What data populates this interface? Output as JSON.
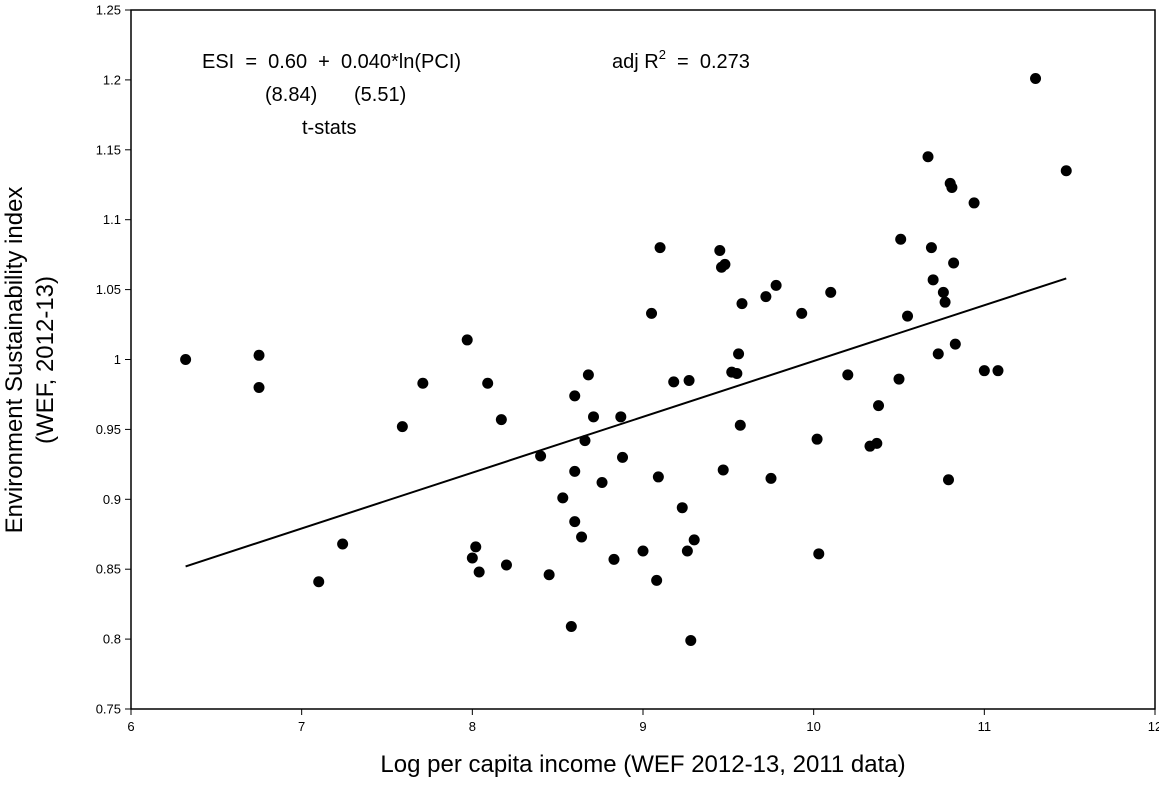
{
  "chart_data": {
    "type": "scatter",
    "xlabel": "Log per capita income  (WEF 2012-13, 2011 data)",
    "ylabel_line1": "Environment Sustainability index",
    "ylabel_line2": "(WEF,  2012-13)",
    "xlim": [
      6,
      12
    ],
    "ylim": [
      0.75,
      1.25
    ],
    "x_ticks": [
      6,
      7,
      8,
      9,
      10,
      11,
      12
    ],
    "y_ticks": [
      0.75,
      0.8,
      0.85,
      0.9,
      0.95,
      1,
      1.05,
      1.1,
      1.15,
      1.2,
      1.25
    ],
    "x_tick_labels": [
      "6",
      "7",
      "8",
      "9",
      "10",
      "11",
      "12"
    ],
    "y_tick_labels": [
      "0.75",
      "0.8",
      "0.85",
      "0.9",
      "0.95",
      "1",
      "1.05",
      "1.1",
      "1.15",
      "1.2",
      "1.25"
    ],
    "grid": false,
    "legend": "none",
    "series": [
      {
        "points": [
          [
            6.32,
            1.0
          ],
          [
            6.75,
            1.003
          ],
          [
            6.75,
            0.98
          ],
          [
            7.1,
            0.841
          ],
          [
            7.24,
            0.868
          ],
          [
            7.59,
            0.952
          ],
          [
            7.71,
            0.983
          ],
          [
            7.97,
            1.014
          ],
          [
            8.0,
            0.858
          ],
          [
            8.02,
            0.866
          ],
          [
            8.04,
            0.848
          ],
          [
            8.09,
            0.983
          ],
          [
            8.17,
            0.957
          ],
          [
            8.2,
            0.853
          ],
          [
            8.4,
            0.931
          ],
          [
            8.45,
            0.846
          ],
          [
            8.53,
            0.901
          ],
          [
            8.58,
            0.809
          ],
          [
            8.6,
            0.974
          ],
          [
            8.6,
            0.92
          ],
          [
            8.6,
            0.884
          ],
          [
            8.64,
            0.873
          ],
          [
            8.66,
            0.942
          ],
          [
            8.68,
            0.989
          ],
          [
            8.71,
            0.959
          ],
          [
            8.76,
            0.912
          ],
          [
            8.83,
            0.857
          ],
          [
            8.87,
            0.959
          ],
          [
            8.88,
            0.93
          ],
          [
            9.0,
            0.863
          ],
          [
            9.05,
            1.033
          ],
          [
            9.08,
            0.842
          ],
          [
            9.09,
            0.916
          ],
          [
            9.1,
            1.08
          ],
          [
            9.18,
            0.984
          ],
          [
            9.23,
            0.894
          ],
          [
            9.26,
            0.863
          ],
          [
            9.27,
            0.985
          ],
          [
            9.28,
            0.799
          ],
          [
            9.3,
            0.871
          ],
          [
            9.45,
            1.078
          ],
          [
            9.46,
            1.066
          ],
          [
            9.47,
            0.921
          ],
          [
            9.48,
            1.068
          ],
          [
            9.52,
            0.991
          ],
          [
            9.55,
            0.99
          ],
          [
            9.56,
            1.004
          ],
          [
            9.57,
            0.953
          ],
          [
            9.58,
            1.04
          ],
          [
            9.72,
            1.045
          ],
          [
            9.75,
            0.915
          ],
          [
            9.78,
            1.053
          ],
          [
            9.93,
            1.033
          ],
          [
            10.02,
            0.943
          ],
          [
            10.03,
            0.861
          ],
          [
            10.1,
            1.048
          ],
          [
            10.2,
            0.989
          ],
          [
            10.33,
            0.938
          ],
          [
            10.37,
            0.94
          ],
          [
            10.38,
            0.967
          ],
          [
            10.5,
            0.986
          ],
          [
            10.51,
            1.086
          ],
          [
            10.55,
            1.031
          ],
          [
            10.67,
            1.145
          ],
          [
            10.69,
            1.08
          ],
          [
            10.7,
            1.057
          ],
          [
            10.73,
            1.004
          ],
          [
            10.76,
            1.048
          ],
          [
            10.77,
            1.041
          ],
          [
            10.79,
            0.914
          ],
          [
            10.8,
            1.126
          ],
          [
            10.81,
            1.123
          ],
          [
            10.82,
            1.069
          ],
          [
            10.83,
            1.011
          ],
          [
            10.94,
            1.112
          ],
          [
            11.0,
            0.992
          ],
          [
            11.08,
            0.992
          ],
          [
            11.3,
            1.201
          ],
          [
            11.48,
            1.135
          ]
        ]
      }
    ],
    "trendline": {
      "x": [
        6.32,
        11.48
      ],
      "y": [
        0.852,
        1.058
      ]
    },
    "annotation": {
      "equation": "ESI  =  0.60  +  0.040*ln(PCI)",
      "r2_prefix": "adj R",
      "r2_sup": "2",
      "r2_value": "  =  0.273",
      "tstat_1": "(8.84)",
      "tstat_2": "(5.51)",
      "tstat_caption": "t-stats"
    }
  }
}
